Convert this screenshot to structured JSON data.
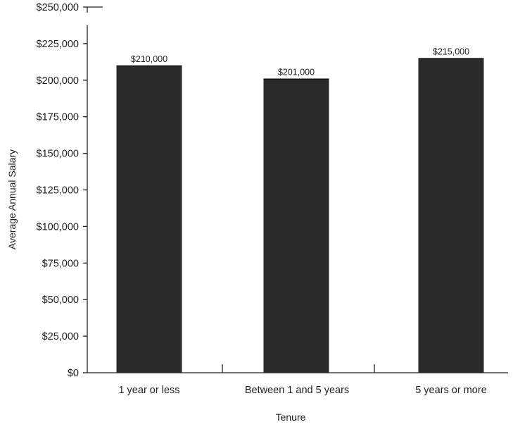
{
  "chart_data": {
    "type": "bar",
    "title": "",
    "xlabel": "Tenure",
    "ylabel": "Average Annual Salary",
    "categories": [
      "1 year or less",
      "Between 1 and 5 years",
      "5 years or more"
    ],
    "values": [
      210000,
      201000,
      215000
    ],
    "data_labels": [
      "$210,000",
      "$201,000",
      "$215,000"
    ],
    "ylim": [
      0,
      250000
    ],
    "yticks": [
      0,
      25000,
      50000,
      75000,
      100000,
      125000,
      150000,
      175000,
      200000,
      225000,
      250000
    ],
    "ytick_labels": [
      "$0",
      "$25,000",
      "$50,000",
      "$75,000",
      "$100,000",
      "$125,000",
      "$150,000",
      "$175,000",
      "$200,000",
      "$225,000",
      "$250,000"
    ],
    "grid": false,
    "legend": "none",
    "bar_color": "#2a2a2a"
  }
}
